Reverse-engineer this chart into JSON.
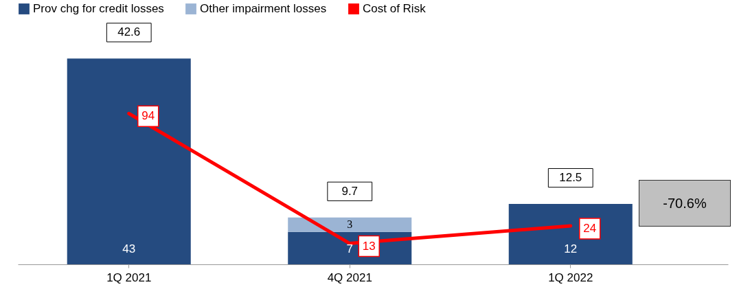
{
  "chart_data": {
    "type": "bar",
    "categories": [
      "1Q 2021",
      "4Q 2021",
      "1Q 2022"
    ],
    "stacked": true,
    "legend": "top",
    "series": [
      {
        "name": "Prov chg for credit losses",
        "color": "#254b80",
        "values": [
          42.6,
          6.7,
          12.5
        ],
        "value_labels": [
          "43",
          "7",
          "12"
        ]
      },
      {
        "name": "Other impairment losses",
        "color": "#9bb4d4",
        "values": [
          null,
          3.0,
          null
        ],
        "value_labels": [
          null,
          "3",
          null
        ]
      },
      {
        "name": "Cost of Risk",
        "type": "line",
        "axis": "y2",
        "color": "#ff0000",
        "values": [
          94,
          13,
          24
        ],
        "value_labels": [
          "94",
          "13",
          "24"
        ]
      }
    ],
    "totals": [
      "42.6",
      "9.7",
      "12.5"
    ],
    "annotations": [
      "-70.6%"
    ]
  }
}
